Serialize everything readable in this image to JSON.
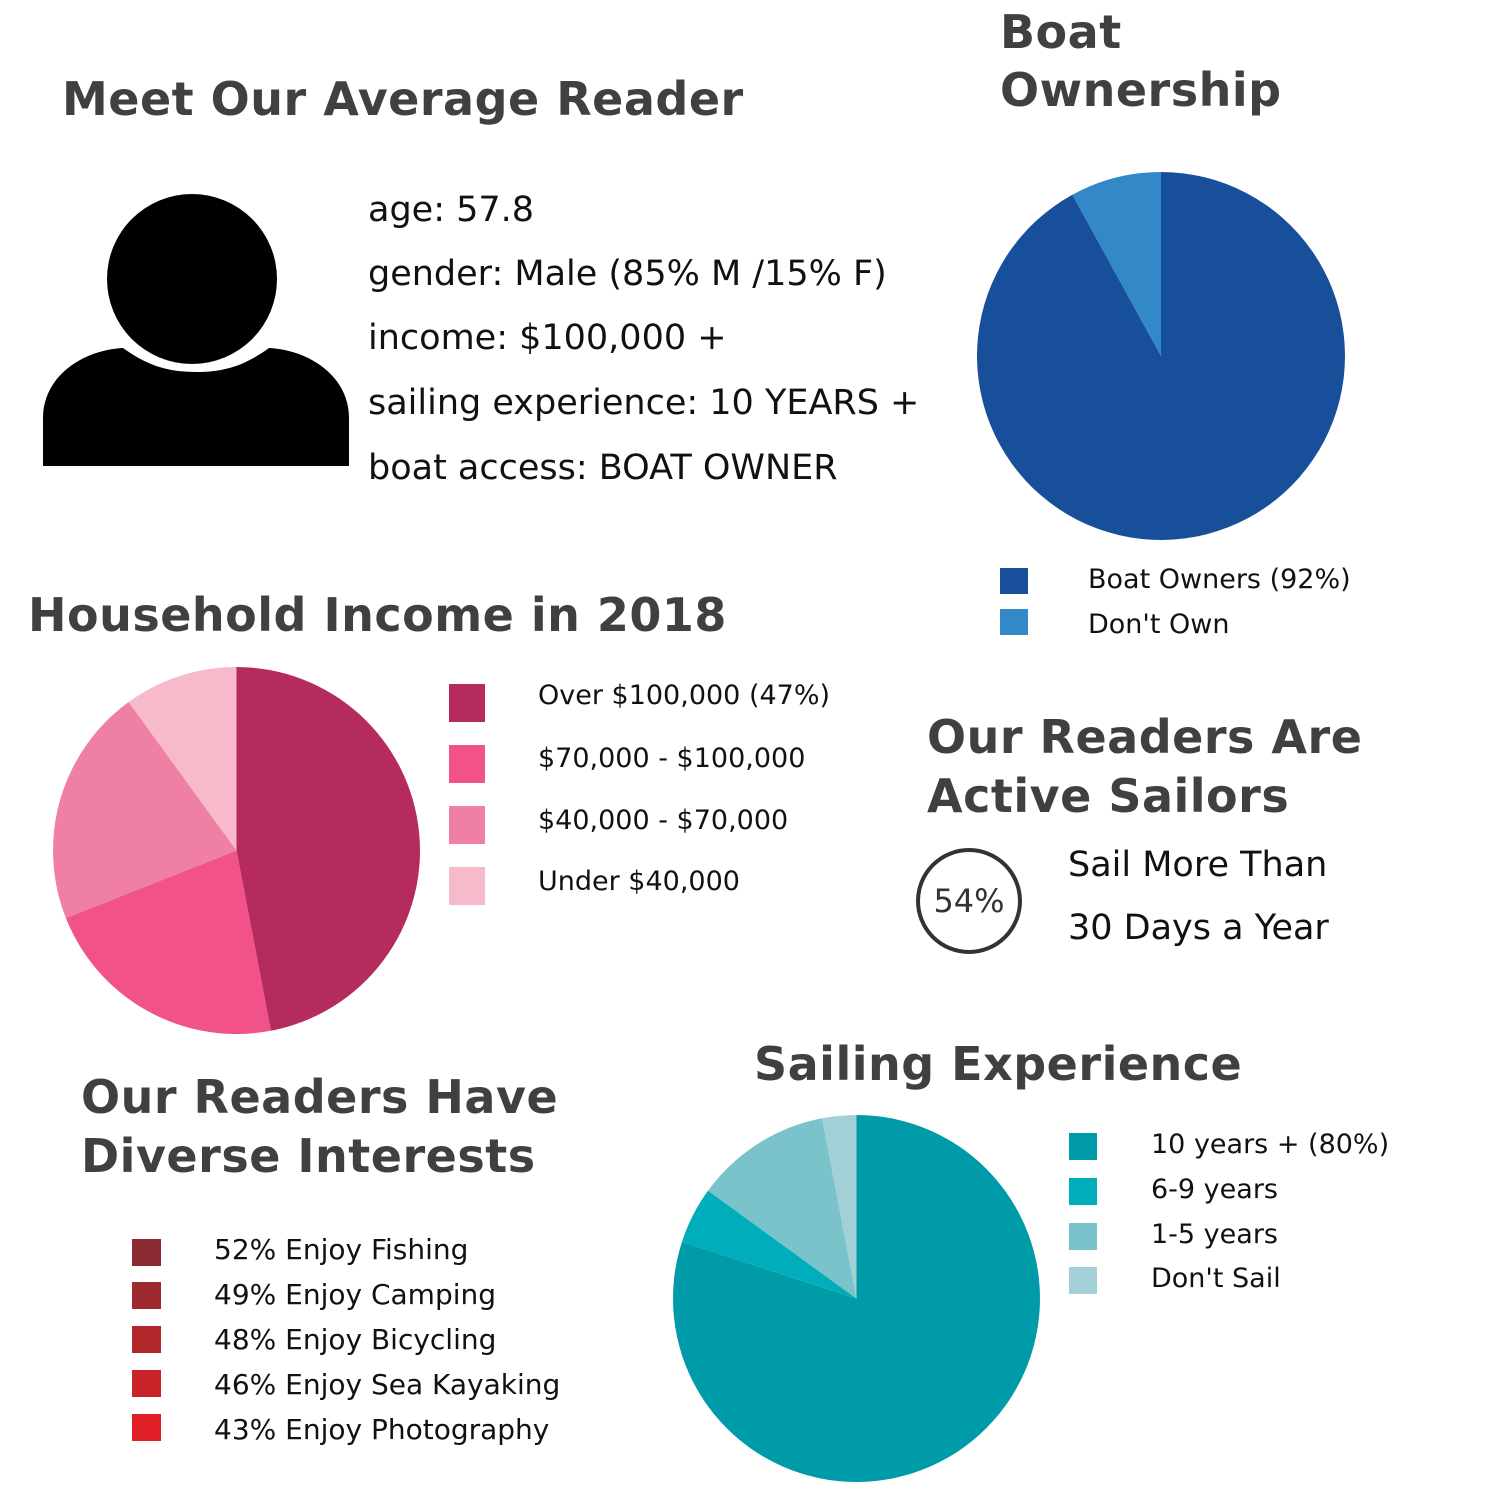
{
  "reader": {
    "title": "Meet Our Average Reader",
    "icon": "person-silhouette-icon",
    "lines": [
      "age: 57.8",
      "gender: Male (85% M /15% F)",
      "income: $100,000 +",
      "sailing experience: 10 YEARS +",
      "boat access: BOAT OWNER"
    ]
  },
  "active": {
    "title_line1": "Our Readers Are",
    "title_line2": "Active Sailors",
    "badge": "54%",
    "text_line1": "Sail More Than",
    "text_line2": "30 Days a Year"
  },
  "interests": {
    "title_line1": "Our Readers Have",
    "title_line2": "Diverse Interests",
    "items": [
      {
        "label": "52% Enjoy Fishing",
        "color": "#8b2a31"
      },
      {
        "label": "49% Enjoy Camping",
        "color": "#9c2a2e"
      },
      {
        "label": "48% Enjoy Bicycling",
        "color": "#b0262b"
      },
      {
        "label": "46% Enjoy Sea Kayaking",
        "color": "#c82329"
      },
      {
        "label": "43% Enjoy Photography",
        "color": "#e11f26"
      }
    ]
  },
  "chart_data": [
    {
      "type": "pie",
      "title_line1": "Boat",
      "title_line2": "Ownership",
      "categories": [
        "Boat Owners (92%)",
        "Don't Own"
      ],
      "values": [
        92,
        8
      ],
      "colors": [
        "#174f9a",
        "#3388c8"
      ],
      "legend_position": "bottom"
    },
    {
      "type": "pie",
      "title": "Household Income in 2018",
      "categories": [
        "Over $100,000 (47%)",
        "$70,000 - $100,000",
        "$40,000 - $70,000",
        "Under $40,000"
      ],
      "values": [
        47,
        22,
        21,
        10
      ],
      "colors": [
        "#b52b5e",
        "#f05289",
        "#f07fa4",
        "#f7bacb"
      ],
      "legend_position": "right"
    },
    {
      "type": "pie",
      "title": "Sailing Experience",
      "categories": [
        "10 years + (80%)",
        "6-9 years",
        "1-5 years",
        "Don't Sail"
      ],
      "values": [
        80,
        5,
        12,
        3
      ],
      "colors": [
        "#009ba8",
        "#00aebb",
        "#7bc3cb",
        "#a2d0d6"
      ],
      "legend_position": "right"
    }
  ]
}
